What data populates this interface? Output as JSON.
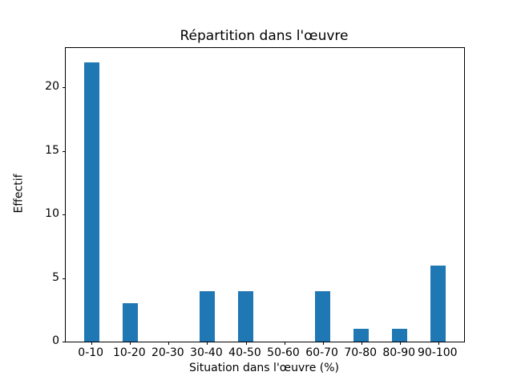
{
  "figure": {
    "background": "#ffffff",
    "text_color": "#000000"
  },
  "chart_data": {
    "type": "bar",
    "title": "Répartition dans l'œuvre",
    "xlabel": "Situation dans l'œuvre (%)",
    "ylabel": "Effectif",
    "categories": [
      "0-10",
      "10-20",
      "20-30",
      "30-40",
      "40-50",
      "50-60",
      "60-70",
      "70-80",
      "80-90",
      "90-100"
    ],
    "values": [
      22,
      3,
      0,
      4,
      4,
      0,
      4,
      1,
      1,
      6
    ],
    "yticks": [
      0,
      5,
      10,
      15,
      20
    ],
    "ylim": [
      0,
      23.1
    ],
    "bar_color": "#1f77b4",
    "bar_width_fraction": 0.4,
    "x_margin_fraction": 0.05,
    "grid": false,
    "legend_position": "none"
  }
}
